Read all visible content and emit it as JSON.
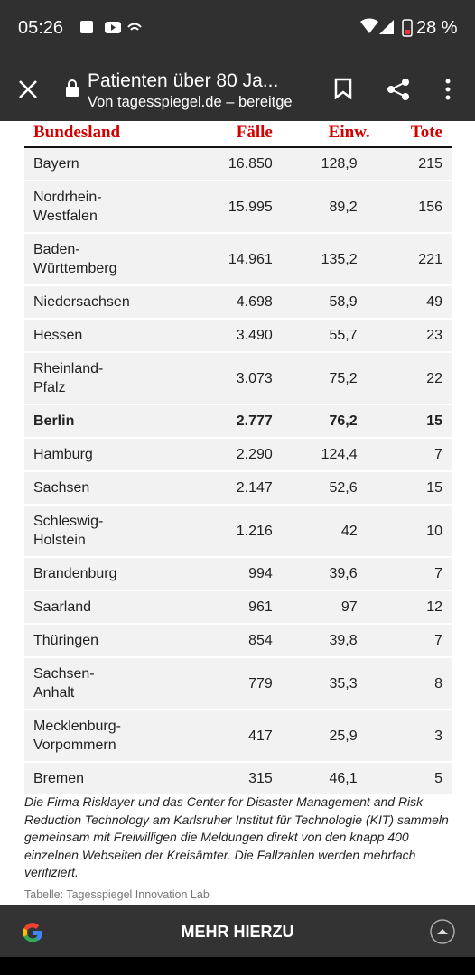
{
  "status": {
    "time": "05:26",
    "battery": "28 %"
  },
  "toolbar": {
    "title": "Patienten über 80 Ja...",
    "subtitle": "Von tagesspiegel.de – bereitge"
  },
  "table": {
    "header": [
      "Bundesland",
      "Fälle",
      "Einw.",
      "Tote"
    ],
    "rows": [
      [
        "Bayern",
        "16.850",
        "128,9",
        "215"
      ],
      [
        "Nordrhein-\nWestfalen",
        "15.995",
        "89,2",
        "156"
      ],
      [
        "Baden-\nWürttemberg",
        "14.961",
        "135,2",
        "221"
      ],
      [
        "Niedersachsen",
        "4.698",
        "58,9",
        "49"
      ],
      [
        "Hessen",
        "3.490",
        "55,7",
        "23"
      ],
      [
        "Rheinland-\nPfalz",
        "3.073",
        "75,2",
        "22"
      ],
      [
        "Berlin",
        "2.777",
        "76,2",
        "15"
      ],
      [
        "Hamburg",
        "2.290",
        "124,4",
        "7"
      ],
      [
        "Sachsen",
        "2.147",
        "52,6",
        "15"
      ],
      [
        "Schleswig-\nHolstein",
        "1.216",
        "42",
        "10"
      ],
      [
        "Brandenburg",
        "994",
        "39,6",
        "7"
      ],
      [
        "Saarland",
        "961",
        "97",
        "12"
      ],
      [
        "Thüringen",
        "854",
        "39,8",
        "7"
      ],
      [
        "Sachsen-\nAnhalt",
        "779",
        "35,3",
        "8"
      ],
      [
        "Mecklenburg-\nVorpommern",
        "417",
        "25,9",
        "3"
      ],
      [
        "Bremen",
        "315",
        "46,1",
        "5"
      ]
    ]
  },
  "note": "Die Firma Risklayer und das Center for Disaster Management and Risk Reduction Technology am Karlsruher Institut für Technologie (KIT) sammeln gemeinsam mit Freiwilligen die Meldungen direkt von den knapp 400 einzelnen Webseiten der Kreisämter. Die Fallzahlen werden mehrfach verifiziert.",
  "source": "Tabelle: Tagesspiegel Innovation Lab",
  "bottom_bar": {
    "button": "MEHR HIERZU"
  }
}
